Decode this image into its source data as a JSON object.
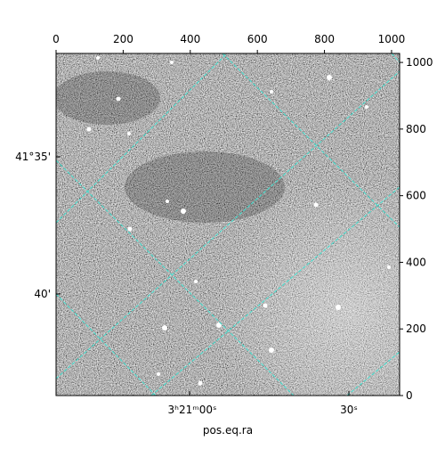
{
  "chart_data": {
    "type": "image",
    "xlim": [
      0,
      1024
    ],
    "xticks": [
      0,
      200,
      400,
      600,
      800,
      1000
    ],
    "ylim": [
      0,
      1027
    ],
    "yticks": [
      0,
      200,
      400,
      600,
      800,
      1000
    ],
    "wcs_y_labels": [
      "41°35'",
      "40'"
    ],
    "wcs_x_labels": [
      "3ʰ21ᵐ00ˢ",
      "30ˢ"
    ],
    "xlabel": "pos.eq.ra",
    "grid_color": "#40e0d0"
  }
}
